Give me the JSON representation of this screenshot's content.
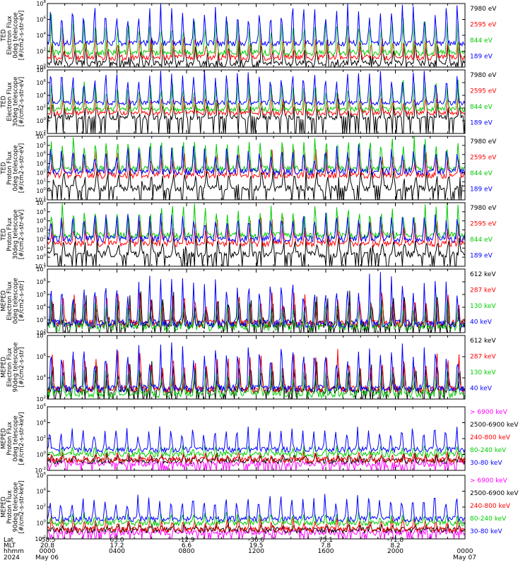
{
  "chart_data": [
    {
      "type": "line",
      "ylabel_lines": [
        "TED",
        "Electron Flux",
        "0deg telescope",
        "[#/cm2-s-str-eV]"
      ],
      "yticks": [
        "10^8",
        "10^6",
        "10^4",
        "10^2",
        "10^0"
      ],
      "ylog": [
        0,
        8
      ],
      "grid": false,
      "legend_placement": "right",
      "series": [
        {
          "name": "7980 eV",
          "color": "#000000",
          "base": 0.5,
          "spike": 3.0
        },
        {
          "name": "2595 eV",
          "color": "#ff0000",
          "base": 1.2,
          "spike": 3.2
        },
        {
          "name": "844 eV",
          "color": "#00cc00",
          "base": 1.8,
          "spike": 4.8
        },
        {
          "name": "189 eV",
          "color": "#0000ff",
          "base": 3.0,
          "spike": 5.2
        }
      ]
    },
    {
      "type": "line",
      "ylabel_lines": [
        "TED",
        "Electron Flux",
        "30deg telescope",
        "[#/cm2-s-str-eV]"
      ],
      "yticks": [
        "10^8",
        "10^6",
        "10^4",
        "10^2",
        "10^0",
        "10^-2"
      ],
      "ylog": [
        -2,
        8
      ],
      "grid": false,
      "legend_placement": "right",
      "series": [
        {
          "name": "7980 eV",
          "color": "#000000",
          "base": 0.5,
          "spike": 3.0
        },
        {
          "name": "2595 eV",
          "color": "#ff0000",
          "base": 1.2,
          "spike": 3.3
        },
        {
          "name": "844 eV",
          "color": "#00cc00",
          "base": 1.8,
          "spike": 4.7
        },
        {
          "name": "189 eV",
          "color": "#0000ff",
          "base": 2.8,
          "spike": 5.3
        }
      ]
    },
    {
      "type": "line",
      "ylabel_lines": [
        "TED",
        "Proton Flux",
        "0deg telescope",
        "[#/cm2-s-str-eV]"
      ],
      "yticks": [
        "10^6",
        "10^5",
        "10^4",
        "10^3",
        "10^2",
        "10^1",
        "10^0",
        "10^-1"
      ],
      "ylog": [
        -1,
        6
      ],
      "grid": false,
      "legend_placement": "right",
      "series": [
        {
          "name": "7980 eV",
          "color": "#000000",
          "base": 0.3,
          "spike": 2.2
        },
        {
          "name": "2595 eV",
          "color": "#ff0000",
          "base": 1.7,
          "spike": 3.2
        },
        {
          "name": "844 eV",
          "color": "#00cc00",
          "base": 2.4,
          "spike": 4.0
        },
        {
          "name": "189 eV",
          "color": "#0000ff",
          "base": 2.1,
          "spike": 3.0
        }
      ]
    },
    {
      "type": "line",
      "ylabel_lines": [
        "TED",
        "Proton Flux",
        "30deg telescope",
        "[#/cm2-s-str-eV]"
      ],
      "yticks": [
        "10^6",
        "10^5",
        "10^4",
        "10^3",
        "10^2",
        "10^1",
        "10^0",
        "10^-1"
      ],
      "ylog": [
        -1,
        6
      ],
      "grid": false,
      "legend_placement": "right",
      "series": [
        {
          "name": "7980 eV",
          "color": "#000000",
          "base": 0.3,
          "spike": 2.2
        },
        {
          "name": "2595 eV",
          "color": "#ff0000",
          "base": 1.5,
          "spike": 3.0
        },
        {
          "name": "844 eV",
          "color": "#00cc00",
          "base": 2.4,
          "spike": 3.8
        },
        {
          "name": "189 eV",
          "color": "#0000ff",
          "base": 2.0,
          "spike": 3.0
        }
      ]
    },
    {
      "type": "line",
      "ylabel_lines": [
        "MEPED",
        "Electron Flux",
        "0deg telescope",
        "[#/cm2-s-str]"
      ],
      "yticks": [
        "10^7",
        "10^6",
        "10^5",
        "10^4",
        "10^3",
        "10^2"
      ],
      "ylog": [
        1.5,
        7
      ],
      "grid": false,
      "legend_placement": "right",
      "series": [
        {
          "name": "612 keV",
          "color": "#000000",
          "base": 2.2,
          "spike": 2.8
        },
        {
          "name": "287 keV",
          "color": "#ff0000",
          "base": 2.3,
          "spike": 3.0
        },
        {
          "name": "130 keV",
          "color": "#00cc00",
          "base": 2.0,
          "spike": 2.6
        },
        {
          "name": "40 keV",
          "color": "#0000ff",
          "base": 2.3,
          "spike": 4.2
        }
      ]
    },
    {
      "type": "line",
      "ylabel_lines": [
        "MEPED",
        "Electron Flux",
        "90deg telescope",
        "[#/cm2-s-str]"
      ],
      "yticks": [
        "10^8",
        "10^6",
        "10^4",
        "10^2"
      ],
      "ylog": [
        1.5,
        8
      ],
      "grid": false,
      "legend_placement": "right",
      "series": [
        {
          "name": "612 keV",
          "color": "#000000",
          "base": 2.4,
          "spike": 3.0
        },
        {
          "name": "287 keV",
          "color": "#ff0000",
          "base": 2.5,
          "spike": 4.0
        },
        {
          "name": "130 keV",
          "color": "#00cc00",
          "base": 2.0,
          "spike": 3.0
        },
        {
          "name": "40 keV",
          "color": "#0000ff",
          "base": 2.6,
          "spike": 5.0
        }
      ]
    },
    {
      "type": "line",
      "ylabel_lines": [
        "MEPED",
        "Proton Flux",
        "0deg telescope",
        "[#/cm2-s-str-keV]"
      ],
      "yticks": [
        "10^6",
        "10^4",
        "10^2",
        "10^0",
        "10^-2"
      ],
      "ylog": [
        -2,
        6
      ],
      "grid": false,
      "legend_placement": "right",
      "series": [
        {
          "name": "> 6900 keV",
          "color": "#ff00ff",
          "base": -1.2,
          "spike": 0.6
        },
        {
          "name": "2500-6900 keV",
          "color": "#000000",
          "base": -0.8,
          "spike": 0.8
        },
        {
          "name": "240-800 keV",
          "color": "#ff0000",
          "base": -0.7,
          "spike": 1.0
        },
        {
          "name": "80-240 keV",
          "color": "#00cc00",
          "base": 0.0,
          "spike": 1.0
        },
        {
          "name": "30-80 keV",
          "color": "#0000ff",
          "base": 0.6,
          "spike": 3.0
        }
      ]
    },
    {
      "type": "line",
      "ylabel_lines": [
        "MEPED",
        "Proton Flux",
        "90deg telescope",
        "[#/cm2-s-str-keV]"
      ],
      "yticks": [
        "10^6",
        "10^4",
        "10^2",
        "10^0",
        "10^-2"
      ],
      "ylog": [
        -2,
        6
      ],
      "grid": false,
      "legend_placement": "right",
      "series": [
        {
          "name": "> 6900 keV",
          "color": "#ff00ff",
          "base": -1.2,
          "spike": 0.6
        },
        {
          "name": "2500-6900 keV",
          "color": "#000000",
          "base": -0.9,
          "spike": 0.8
        },
        {
          "name": "240-800 keV",
          "color": "#ff0000",
          "base": -0.8,
          "spike": 1.5
        },
        {
          "name": "80-240 keV",
          "color": "#00cc00",
          "base": 0.0,
          "spike": 1.3
        },
        {
          "name": "30-80 keV",
          "color": "#0000ff",
          "base": 0.5,
          "spike": 3.2
        }
      ]
    }
  ],
  "x_axis": {
    "row_labels": [
      "Lat",
      "MLT",
      "hhmm",
      "2024"
    ],
    "columns": [
      {
        "lat": "-58.5",
        "mlt": "20.8",
        "hhmm": "0000",
        "date": "May 06"
      },
      {
        "lat": "63.0",
        "mlt": "17.2",
        "hhmm": "0400",
        "date": ""
      },
      {
        "lat": "-12.9",
        "mlt": "6.6",
        "hhmm": "0800",
        "date": ""
      },
      {
        "lat": "-36.6",
        "mlt": "19.5",
        "hhmm": "1200",
        "date": ""
      },
      {
        "lat": "75.1",
        "mlt": "7.8",
        "hhmm": "1600",
        "date": ""
      },
      {
        "lat": "-71.8",
        "mlt": "8.2",
        "hhmm": "2000",
        "date": ""
      },
      {
        "lat": "",
        "mlt": "",
        "hhmm": "0000",
        "date": "May 07"
      }
    ]
  }
}
